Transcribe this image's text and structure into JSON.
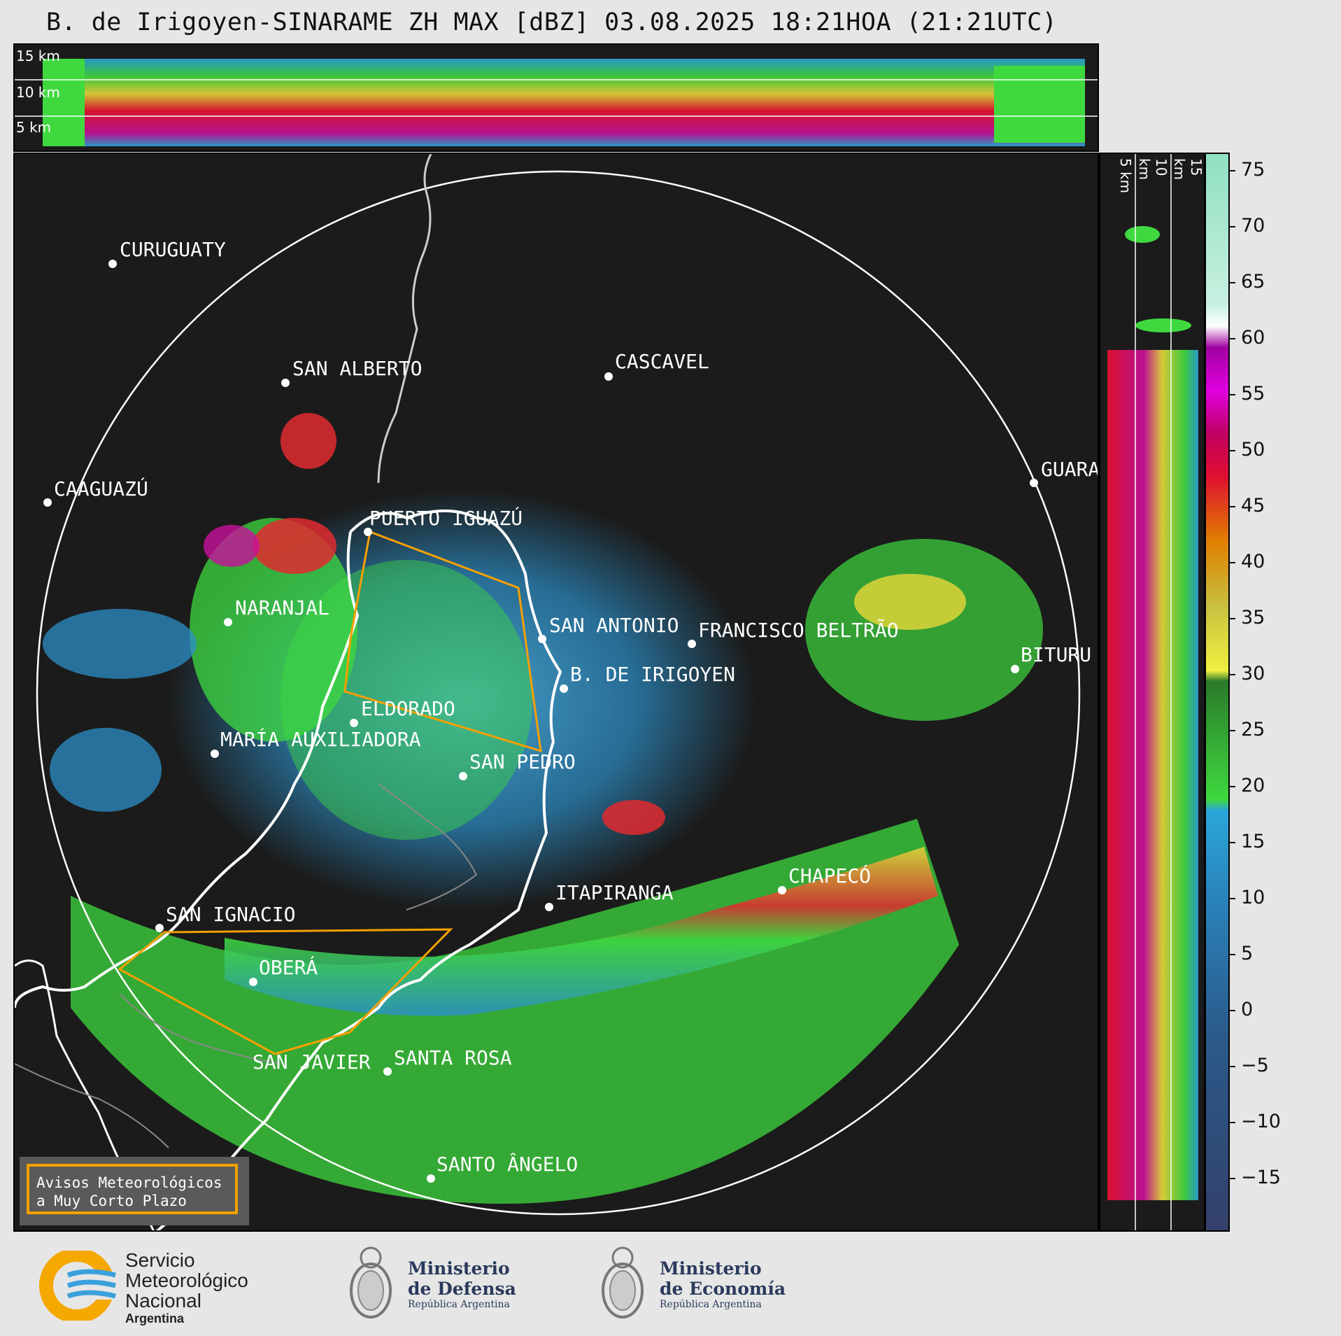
{
  "title": "B. de Irigoyen-SINARAME ZH MAX [dBZ] 03.08.2025 18:21HOA (21:21UTC)",
  "top_panel": {
    "km_labels": [
      "15 km",
      "10 km",
      "5 km"
    ]
  },
  "side_panel": {
    "km_labels": [
      "5 km",
      "10 km",
      "15 km"
    ]
  },
  "cities": [
    {
      "name": "CURUGUATY"
    },
    {
      "name": "SAN ALBERTO"
    },
    {
      "name": "CASCAVEL"
    },
    {
      "name": "CAAGUAZÚ"
    },
    {
      "name": "GUARA"
    },
    {
      "name": "PUERTO IGUAZÚ"
    },
    {
      "name": "NARANJAL"
    },
    {
      "name": "SAN ANTONIO"
    },
    {
      "name": "FRANCISCO BELTRÃO"
    },
    {
      "name": "BITURU"
    },
    {
      "name": "B. DE IRIGOYEN"
    },
    {
      "name": "ELDORADO"
    },
    {
      "name": "MARÍA AUXILIADORA"
    },
    {
      "name": "SAN PEDRO"
    },
    {
      "name": "CHAPECÓ"
    },
    {
      "name": "ITAPIRANGA"
    },
    {
      "name": "SAN IGNACIO"
    },
    {
      "name": "OBERÁ"
    },
    {
      "name": "SAN JAVIER"
    },
    {
      "name": "SANTA ROSA"
    },
    {
      "name": "SANTO ÂNGELO"
    }
  ],
  "legend_box": {
    "line1": "Avisos Meteorológicos",
    "line2": "a Muy Corto Plazo"
  },
  "colorbar": {
    "unit": "dBZ",
    "ticks": [
      "75",
      "70",
      "65",
      "60",
      "55",
      "50",
      "45",
      "40",
      "35",
      "30",
      "25",
      "20",
      "15",
      "10",
      "5",
      "0",
      "−5",
      "−10",
      "−15"
    ]
  },
  "logos": {
    "smn": {
      "line1": "Servicio",
      "line2": "Meteorológico",
      "line3": "Nacional",
      "line4": "Argentina"
    },
    "defensa": {
      "line1": "Ministerio",
      "line2": "de Defensa",
      "line3": "República Argentina"
    },
    "economia": {
      "line1": "Ministerio",
      "line2": "de Economía",
      "line3": "República Argentina"
    }
  },
  "colors": {
    "background": "#1b1b1b",
    "border_line": "#ffffff",
    "warning_polygon": "#f5a000",
    "range_ring": "#ffffff"
  }
}
